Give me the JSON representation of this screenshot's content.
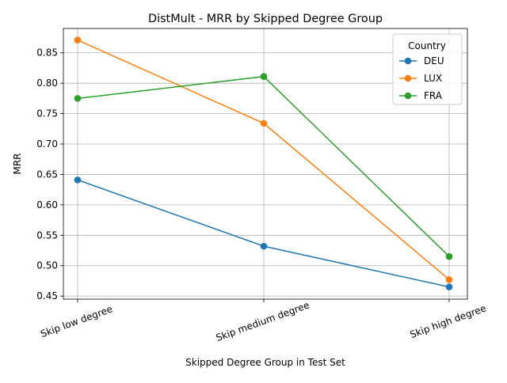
{
  "chart_data": {
    "type": "line",
    "title": "DistMult - MRR by Skipped Degree Group",
    "xlabel": "Skipped Degree Group in Test Set",
    "ylabel": "MRR",
    "categories": [
      "Skip low degree",
      "Skip medium degree",
      "Skip high degree"
    ],
    "ylim": [
      0.445,
      0.89
    ],
    "yticks": [
      "0.45",
      "0.50",
      "0.55",
      "0.60",
      "0.65",
      "0.70",
      "0.75",
      "0.80",
      "0.85"
    ],
    "grid": true,
    "legend": {
      "title": "Country",
      "placement": "top-right"
    },
    "series": [
      {
        "name": "DEU",
        "color": "#1f77b4",
        "values": [
          0.641,
          0.532,
          0.465
        ]
      },
      {
        "name": "LUX",
        "color": "#ff7f0e",
        "values": [
          0.871,
          0.734,
          0.477
        ]
      },
      {
        "name": "FRA",
        "color": "#2ca02c",
        "values": [
          0.775,
          0.811,
          0.515
        ]
      }
    ]
  }
}
